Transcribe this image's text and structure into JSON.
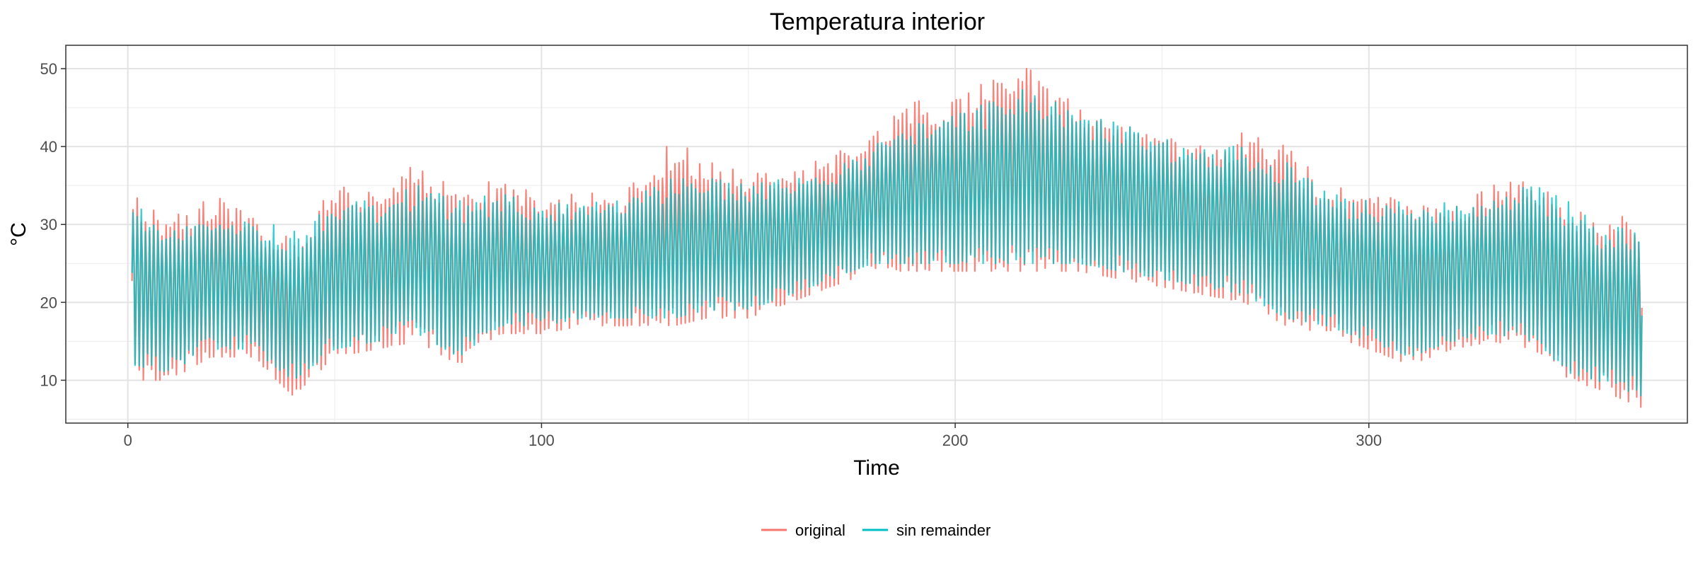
{
  "chart_data": {
    "type": "line",
    "title": "Temperatura interior",
    "xlabel": "Time",
    "ylabel": "°C",
    "xlim": [
      -15,
      377
    ],
    "ylim": [
      4.5,
      53
    ],
    "x_ticks": [
      0,
      100,
      200,
      300
    ],
    "y_ticks": [
      10,
      20,
      30,
      40,
      50
    ],
    "grid": true,
    "legend_position": "bottom",
    "x_range": [
      1,
      366
    ],
    "series": [
      {
        "name": "original",
        "color": "#F8766D",
        "envelope": {
          "x": [
            1,
            10,
            20,
            30,
            40,
            50,
            60,
            70,
            80,
            90,
            100,
            110,
            120,
            132,
            140,
            150,
            160,
            170,
            180,
            190,
            200,
            210,
            218,
            230,
            240,
            250,
            260,
            270,
            280,
            290,
            300,
            310,
            320,
            330,
            340,
            348,
            355,
            366
          ],
          "high": [
            34.5,
            31,
            34,
            31,
            28,
            35,
            34,
            38,
            34,
            36,
            33.5,
            34,
            34,
            41,
            38,
            37,
            37,
            39,
            42,
            46,
            46,
            50,
            50,
            45,
            44,
            42,
            40,
            42,
            40,
            35,
            34,
            33,
            32,
            35,
            36,
            33,
            31,
            31
          ],
          "low": [
            10,
            10,
            13,
            13,
            8,
            13,
            14,
            15,
            12,
            16,
            16,
            17,
            17,
            17,
            18,
            18,
            20,
            22,
            24,
            24,
            24,
            24,
            24,
            24,
            23,
            22,
            21,
            20,
            17,
            16,
            14,
            12,
            14,
            15,
            14,
            10,
            9,
            6.5
          ]
        }
      },
      {
        "name": "sin remainder",
        "color": "#00BFC4",
        "envelope": {
          "x": [
            1,
            10,
            20,
            30,
            40,
            50,
            60,
            70,
            80,
            90,
            100,
            110,
            120,
            132,
            140,
            150,
            160,
            170,
            180,
            190,
            200,
            210,
            218,
            230,
            240,
            250,
            260,
            270,
            280,
            290,
            300,
            310,
            320,
            330,
            340,
            348,
            355,
            366
          ],
          "high": [
            33.5,
            30,
            31,
            31,
            29,
            33,
            33,
            35,
            33,
            34,
            32.5,
            33,
            33,
            36,
            36,
            35,
            36,
            37,
            40,
            43,
            44,
            46,
            48,
            44,
            43,
            41,
            40,
            40,
            38,
            34,
            33,
            33,
            33,
            34,
            35,
            33,
            30,
            30
          ],
          "low": [
            12,
            11,
            14,
            14,
            10,
            14,
            15,
            16,
            13,
            17,
            17,
            18,
            18,
            18,
            19,
            19,
            21,
            23,
            25,
            25,
            25,
            25,
            25,
            25,
            24,
            23,
            22,
            21,
            18,
            17,
            15,
            13,
            15,
            16,
            15,
            11,
            10,
            8
          ]
        }
      }
    ]
  }
}
